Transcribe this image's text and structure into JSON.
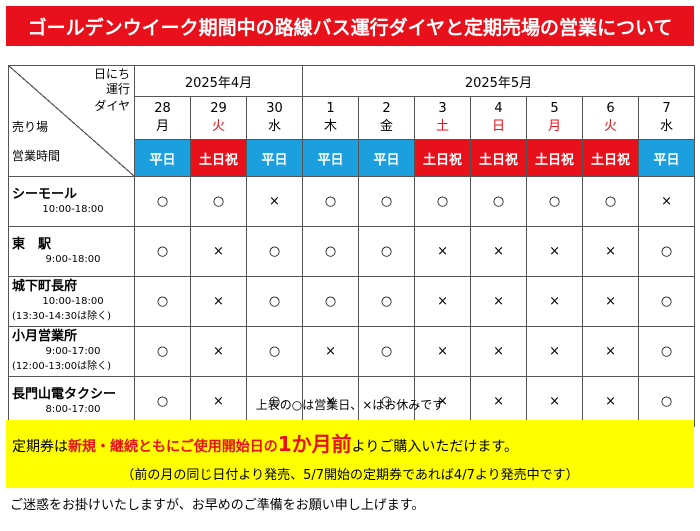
{
  "title": "ゴールデンウイーク期間中の路線バス運行ダイヤと定期売場の営業について",
  "corner": {
    "line1": "日にち",
    "line2": "運行",
    "line3": "ダイヤ",
    "stores": "売り場",
    "hours": "営業時間"
  },
  "months": {
    "april": "2025年4月",
    "may": "2025年5月"
  },
  "days": [
    {
      "num": "28",
      "dow": "月",
      "red": false,
      "type": "平日",
      "kind": "weekday"
    },
    {
      "num": "29",
      "dow": "火",
      "red": true,
      "type": "土日祝",
      "kind": "holiday"
    },
    {
      "num": "30",
      "dow": "水",
      "red": false,
      "type": "平日",
      "kind": "weekday"
    },
    {
      "num": "1",
      "dow": "木",
      "red": false,
      "type": "平日",
      "kind": "weekday"
    },
    {
      "num": "2",
      "dow": "金",
      "red": false,
      "type": "平日",
      "kind": "weekday"
    },
    {
      "num": "3",
      "dow": "土",
      "red": true,
      "type": "土日祝",
      "kind": "holiday"
    },
    {
      "num": "4",
      "dow": "日",
      "red": true,
      "type": "土日祝",
      "kind": "holiday"
    },
    {
      "num": "5",
      "dow": "月",
      "red": true,
      "type": "土日祝",
      "kind": "holiday"
    },
    {
      "num": "6",
      "dow": "火",
      "red": true,
      "type": "土日祝",
      "kind": "holiday"
    },
    {
      "num": "7",
      "dow": "水",
      "red": false,
      "type": "平日",
      "kind": "weekday"
    }
  ],
  "stores": [
    {
      "name": "シーモール",
      "hours": "10:00-18:00",
      "note": "",
      "marks": [
        "○",
        "○",
        "×",
        "○",
        "○",
        "○",
        "○",
        "○",
        "○",
        "×"
      ]
    },
    {
      "name": "東　駅",
      "hours": "9:00-18:00",
      "note": "",
      "marks": [
        "○",
        "×",
        "○",
        "○",
        "○",
        "×",
        "×",
        "×",
        "×",
        "○"
      ]
    },
    {
      "name": "城下町長府",
      "hours": "10:00-18:00",
      "note": "(13:30-14:30は除く)",
      "marks": [
        "○",
        "×",
        "○",
        "○",
        "○",
        "×",
        "×",
        "×",
        "×",
        "○"
      ]
    },
    {
      "name": "小月営業所",
      "hours": "9:00-17:00",
      "note": "(12:00-13:00は除く)",
      "marks": [
        "○",
        "×",
        "○",
        "×",
        "○",
        "×",
        "×",
        "×",
        "×",
        "○"
      ]
    },
    {
      "name": "長門山電タクシー",
      "hours": "8:00-17:00",
      "note": "",
      "marks": [
        "○",
        "×",
        "○",
        "×",
        "○",
        "×",
        "×",
        "×",
        "×",
        "○"
      ]
    }
  ],
  "legend": "上表の○は営業日、×はお休みです",
  "notice": {
    "p1": "定期券は",
    "p2": "新規・継続ともにご使用開始日の",
    "p3": "1か月前",
    "p4": "よりご購入いただけます。",
    "line2": "（前の月の同じ日付より発売、5/7開始の定期券であれば4/7より発売中です）"
  },
  "footer": "ご迷惑をお掛けいたしますが、お早めのご準備をお願い申し上げます。",
  "colors": {
    "banner": "#e8101a",
    "weekday": "#1b9fdf",
    "holiday": "#e8101a",
    "notice": "#ffff00"
  }
}
